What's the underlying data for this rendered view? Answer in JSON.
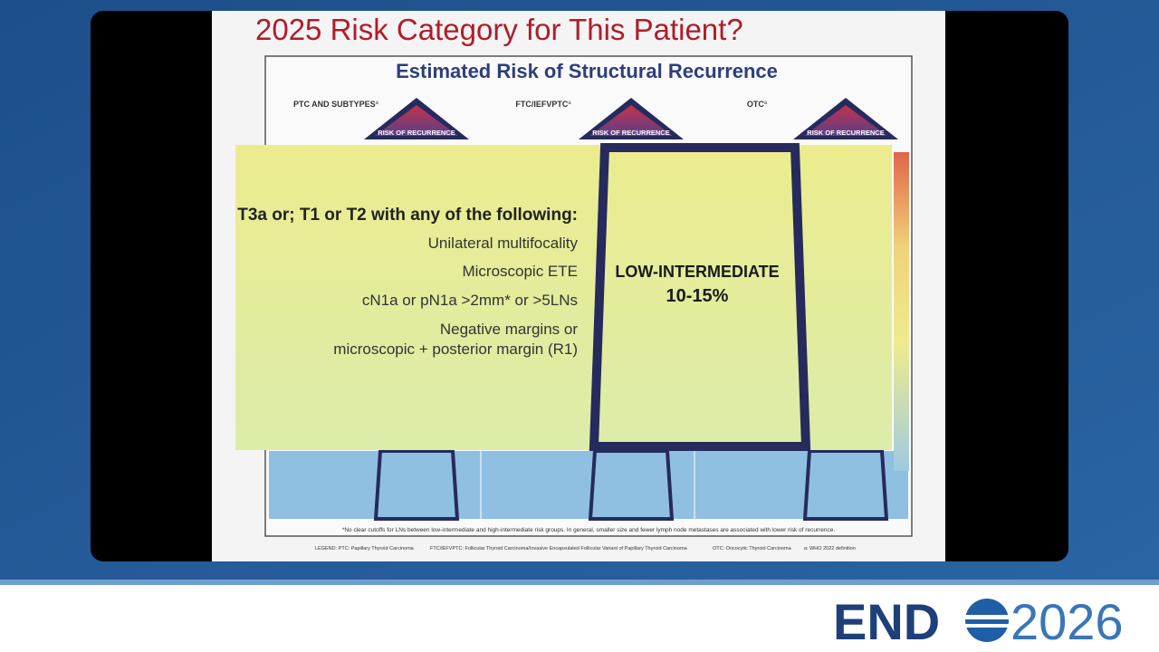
{
  "slide": {
    "title": "2025 Risk Category for This Patient?",
    "heading": "Estimated Risk of Structural Recurrence",
    "columns": [
      {
        "label": "PTC AND SUBTYPES",
        "mark": "a",
        "triangle": "RISK OF RECURRENCE"
      },
      {
        "label": "FTC/IEFVPTC",
        "mark": "a",
        "triangle": "RISK OF RECURRENCE"
      },
      {
        "label": "OTC",
        "mark": "a",
        "triangle": "RISK OF RECURRENCE"
      }
    ],
    "criteria": {
      "lead": "T3a or; T1 or T2 with any of the following:",
      "items": [
        "Unilateral multifocality",
        "Microscopic ETE",
        "cN1a or pN1a >2mm* or >5LNs",
        "Negative margins or",
        "microscopic + posterior margin (R1)"
      ]
    },
    "risk_box": {
      "category": "LOW-INTERMEDIATE",
      "range": "10-15%"
    },
    "footnote": "*No clear cutoffs for LNs between low-intermediate and high-intermediate risk groups.  In general, smaller size and fewer lymph node metastases are associated with lower risk of recurrence.",
    "legend": [
      "LEGEND:  PTC: Papillary Thyroid Carcinoma",
      "FTC/IEFVPTC: Follicular Thyroid Carcinoma/Invasive Encapsulated Follicular Variant of Papillary Thyroid Carcinoma",
      "OTC: Oncocytic Thyroid Carcinoma",
      "a: WHO 2022 definition"
    ]
  },
  "logo": {
    "left": "END",
    "right": "2026"
  }
}
